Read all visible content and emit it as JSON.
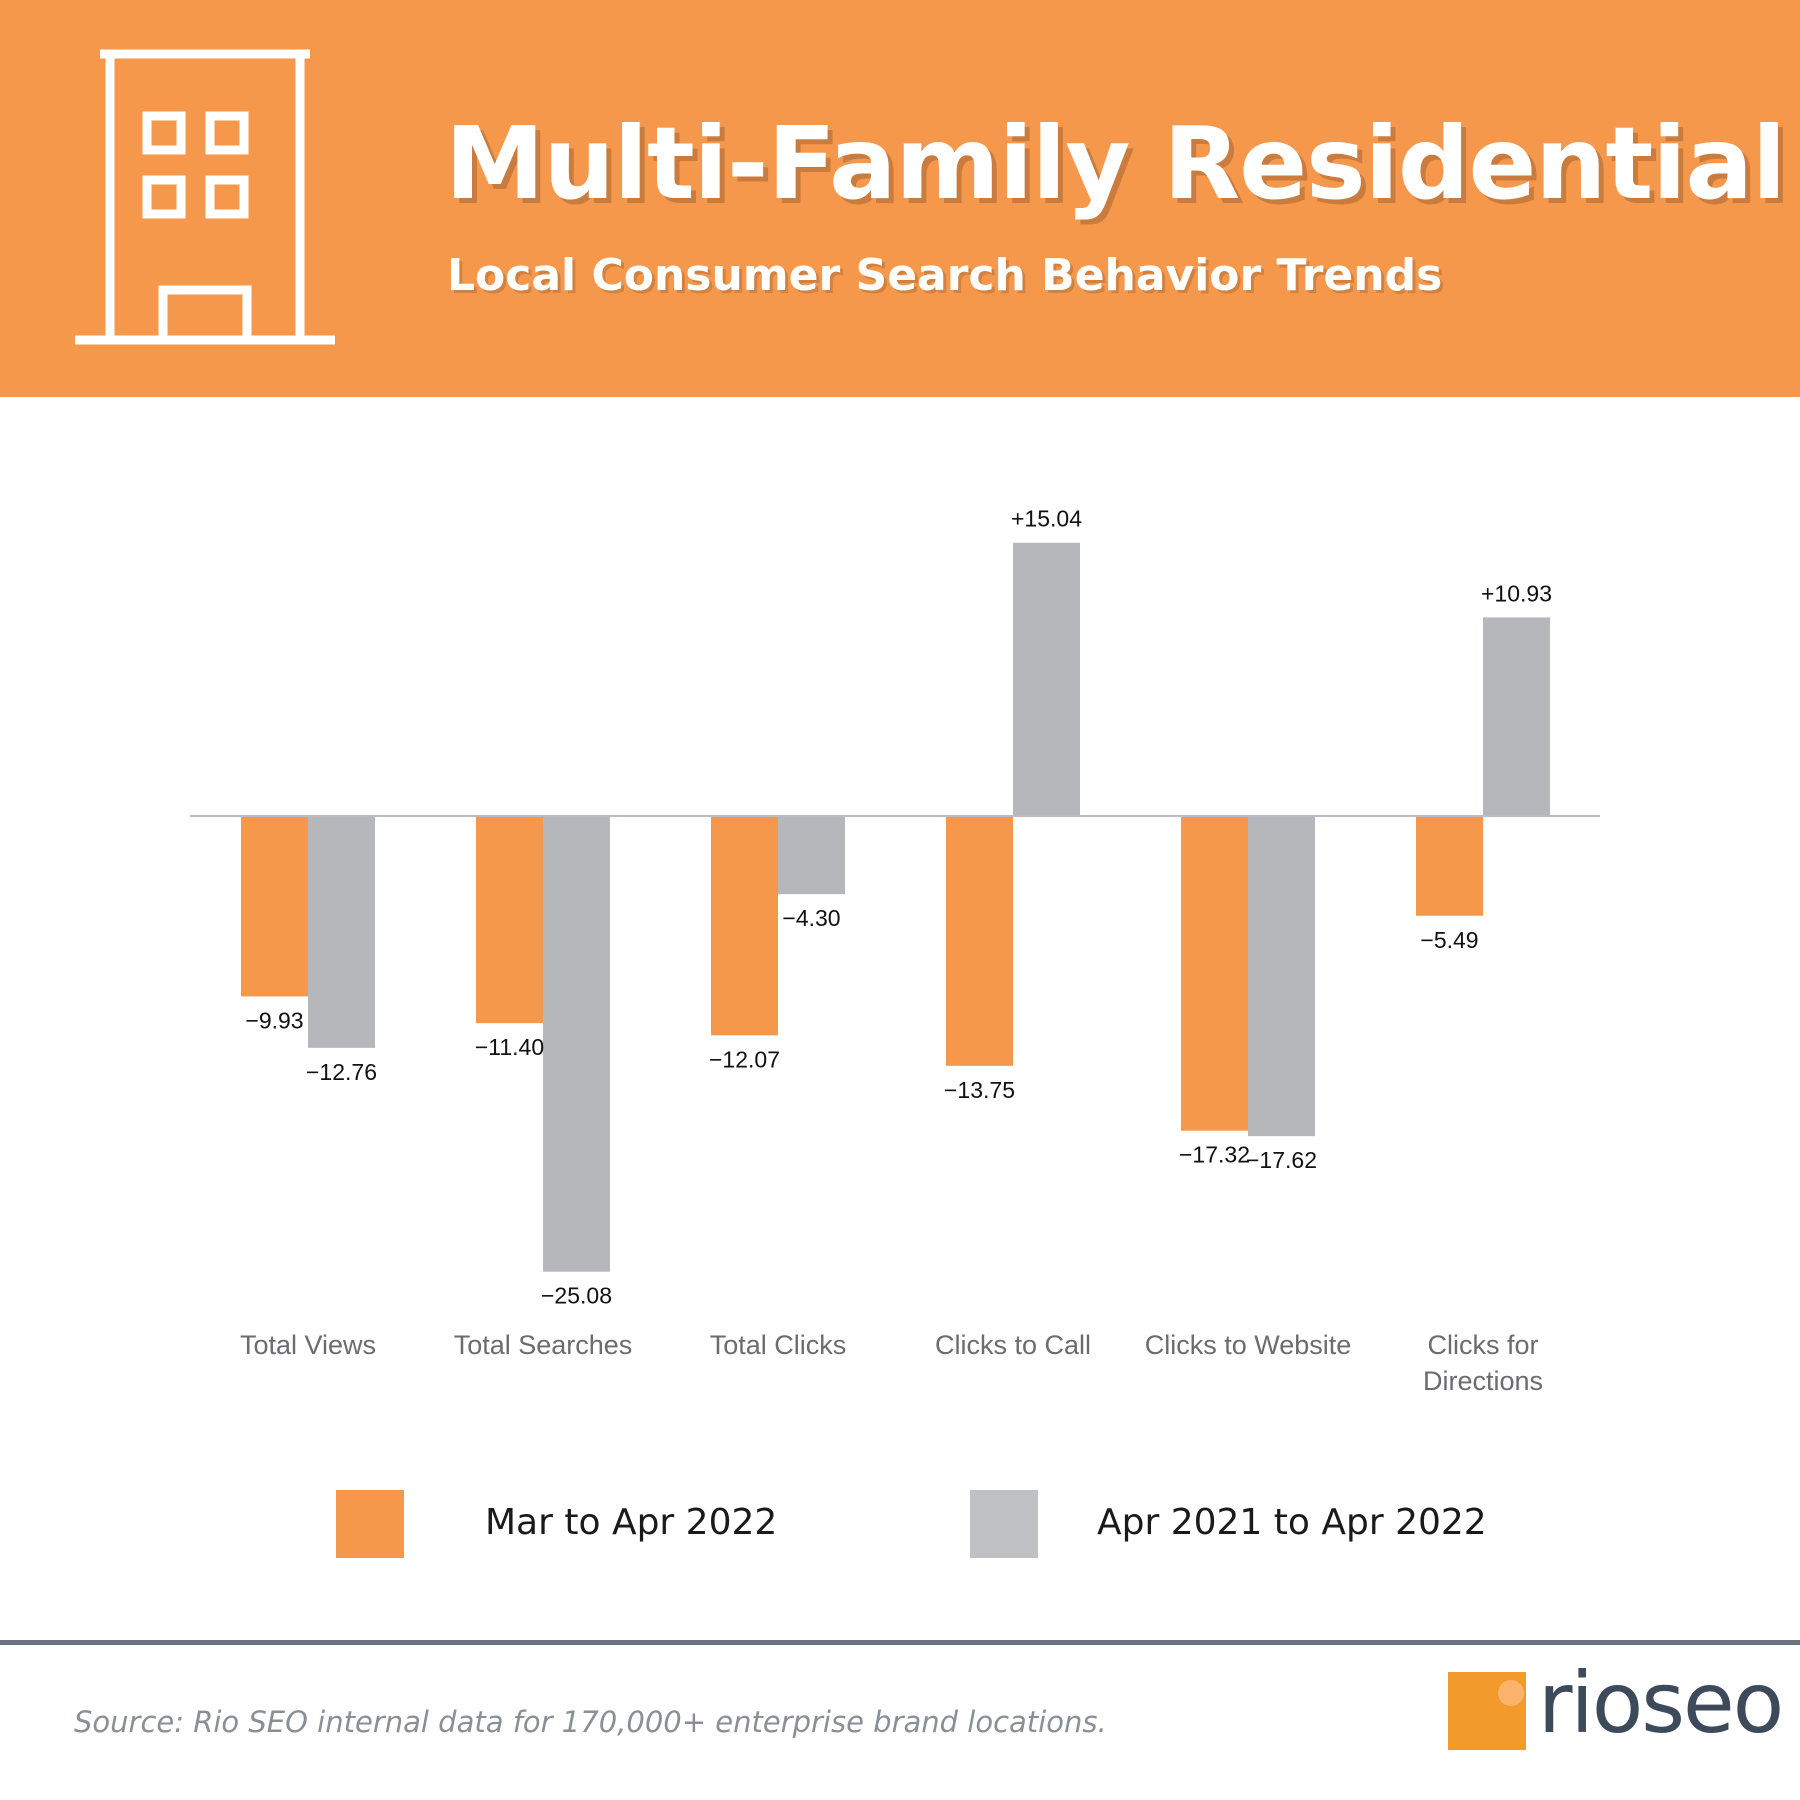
{
  "header": {
    "title": "Multi-Family Residential",
    "subtitle": "Local Consumer Search Behavior Trends",
    "icon": "building-icon"
  },
  "colors": {
    "orange": "#f6984c",
    "gray": "#b6b7bb",
    "axis": "#b9bcc4",
    "category_label": "#6b6b70"
  },
  "chart_data": {
    "type": "bar",
    "title": "Multi-Family Residential",
    "subtitle": "Local Consumer Search Behavior Trends",
    "categories": [
      [
        "Total Views"
      ],
      [
        "Total Searches"
      ],
      [
        "Total Clicks"
      ],
      [
        "Clicks to Call"
      ],
      [
        "Clicks to Website"
      ],
      [
        "Clicks for",
        "Directions"
      ]
    ],
    "series": [
      {
        "name": "Mar to Apr 2022",
        "color": "#f6984c",
        "values": [
          -9.93,
          -11.4,
          -12.07,
          -13.75,
          -17.32,
          -5.49
        ],
        "labels": [
          "−9.93",
          "−11.40",
          "−12.07",
          "−13.75",
          "−17.32",
          "−5.49"
        ]
      },
      {
        "name": "Apr 2021 to Apr 2022",
        "color": "#b6b7bb",
        "values": [
          -12.76,
          -25.08,
          -4.3,
          15.04,
          -17.62,
          10.93
        ],
        "labels": [
          "−12.76",
          "−25.08",
          "−4.30",
          "+15.04",
          "−17.62",
          "+10.93"
        ]
      }
    ],
    "ylim": [
      -25.08,
      15.04
    ],
    "baseline": 0,
    "grid": false,
    "legend": "bottom"
  },
  "legend": {
    "items": [
      {
        "label": "Mar to Apr 2022",
        "color": "#f6984c"
      },
      {
        "label": "Apr 2021 to Apr 2022",
        "color": "#b6b7bb"
      }
    ]
  },
  "footer": {
    "source": "Source: Rio SEO internal data for 170,000+ enterprise brand locations.",
    "logo_text_1": "rio",
    "logo_text_2": "seo"
  }
}
